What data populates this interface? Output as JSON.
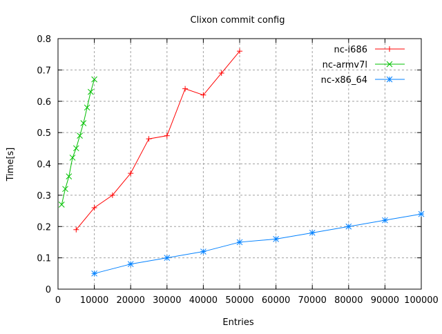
{
  "chart_data": {
    "type": "line",
    "title": "Clixon commit config",
    "xlabel": "Entries",
    "ylabel": "Time[s]",
    "xlim": [
      0,
      100000
    ],
    "ylim": [
      0,
      0.8
    ],
    "x_ticks": [
      "0",
      "10000",
      "20000",
      "30000",
      "40000",
      "50000",
      "60000",
      "70000",
      "80000",
      "90000",
      "100000"
    ],
    "y_ticks": [
      "0",
      "0.1",
      "0.2",
      "0.3",
      "0.4",
      "0.5",
      "0.6",
      "0.7",
      "0.8"
    ],
    "grid": true,
    "legend_position": "top-right",
    "series": [
      {
        "name": "nc-i686",
        "color": "#ff0000",
        "marker": "plus",
        "x": [
          5000,
          10000,
          15000,
          20000,
          25000,
          30000,
          35000,
          40000,
          45000,
          50000
        ],
        "y": [
          0.19,
          0.26,
          0.3,
          0.37,
          0.48,
          0.49,
          0.64,
          0.62,
          0.69,
          0.76
        ]
      },
      {
        "name": "nc-armv7l",
        "color": "#00c000",
        "marker": "cross",
        "x": [
          1000,
          2000,
          3000,
          4000,
          5000,
          6000,
          7000,
          8000,
          9000,
          10000
        ],
        "y": [
          0.27,
          0.32,
          0.36,
          0.42,
          0.45,
          0.49,
          0.53,
          0.58,
          0.63,
          0.67
        ]
      },
      {
        "name": "nc-x86_64",
        "color": "#0080ff",
        "marker": "star",
        "x": [
          10000,
          20000,
          30000,
          40000,
          50000,
          60000,
          70000,
          80000,
          90000,
          100000
        ],
        "y": [
          0.05,
          0.08,
          0.1,
          0.12,
          0.15,
          0.16,
          0.18,
          0.2,
          0.22,
          0.24
        ]
      }
    ]
  }
}
